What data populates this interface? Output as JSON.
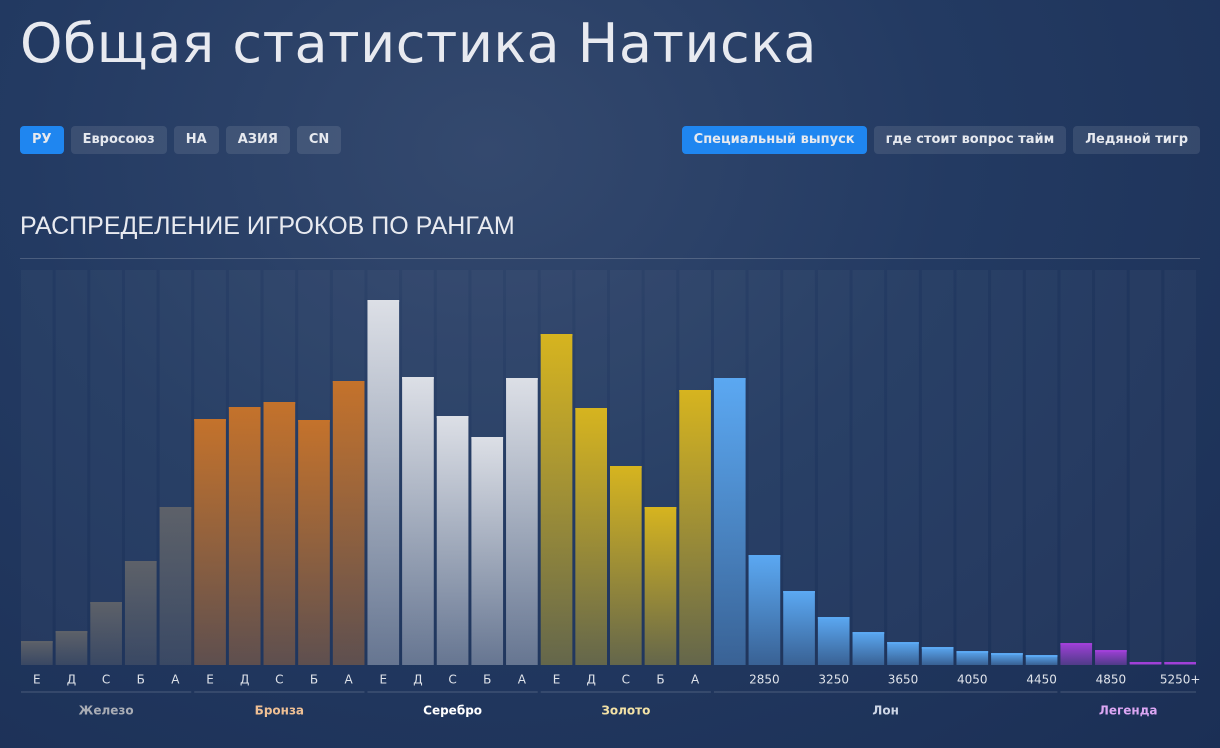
{
  "header": {
    "title": "Общая статистика Натиска",
    "regions": [
      {
        "label": "РУ",
        "active": true
      },
      {
        "label": "Евросоюз",
        "active": false
      },
      {
        "label": "НА",
        "active": false
      },
      {
        "label": "АЗИЯ",
        "active": false
      },
      {
        "label": "CN",
        "active": false
      }
    ],
    "seasons": [
      {
        "label": "Специальный выпуск",
        "active": true
      },
      {
        "label": "где стоит вопрос тайм",
        "active": false
      },
      {
        "label": "Ледяной тигр",
        "active": false
      }
    ]
  },
  "chart_data": {
    "type": "bar",
    "title": "РАСПРЕДЕЛЕНИЕ ИГРОКОВ ПО РАНГАМ",
    "groups": [
      {
        "name": "Железо",
        "color": "#5d6169",
        "label_color": "#a9adb5",
        "categories": [
          "Е",
          "Д",
          "С",
          "Б",
          "А"
        ],
        "values": [
          2.4,
          3.4,
          6.3,
          10.4,
          15.8
        ]
      },
      {
        "name": "Бронза",
        "color": "#c4722b",
        "label_color": "#eebf94",
        "categories": [
          "Е",
          "Д",
          "С",
          "Б",
          "А"
        ],
        "values": [
          24.6,
          25.8,
          26.3,
          24.5,
          28.4
        ]
      },
      {
        "name": "Серебро",
        "color": "#dcdfe6",
        "label_color": "#ffffff",
        "categories": [
          "Е",
          "Д",
          "С",
          "Б",
          "А"
        ],
        "values": [
          36.5,
          28.8,
          24.9,
          22.8,
          28.7
        ]
      },
      {
        "name": "Золото",
        "color": "#d6b41f",
        "label_color": "#f3e2a6",
        "categories": [
          "Е",
          "Д",
          "С",
          "Б",
          "А"
        ],
        "values": [
          33.1,
          25.7,
          19.9,
          15.8,
          27.5
        ]
      },
      {
        "name": "Лон",
        "color": "#5ba8f2",
        "label_color": "#cdd6e6",
        "categories": [
          null,
          "2850",
          null,
          "3250",
          null,
          "3650",
          null,
          "4050",
          null,
          "4450"
        ],
        "values": [
          28.7,
          11.0,
          7.4,
          4.8,
          3.3,
          2.3,
          1.8,
          1.4,
          1.2,
          1.0
        ]
      },
      {
        "name": "Легенда",
        "color": "#a040d8",
        "label_color": "#dba6f3",
        "categories": [
          null,
          "4850",
          null,
          "5250+"
        ],
        "values": [
          2.2,
          1.5,
          0.3,
          0.3
        ]
      }
    ]
  }
}
